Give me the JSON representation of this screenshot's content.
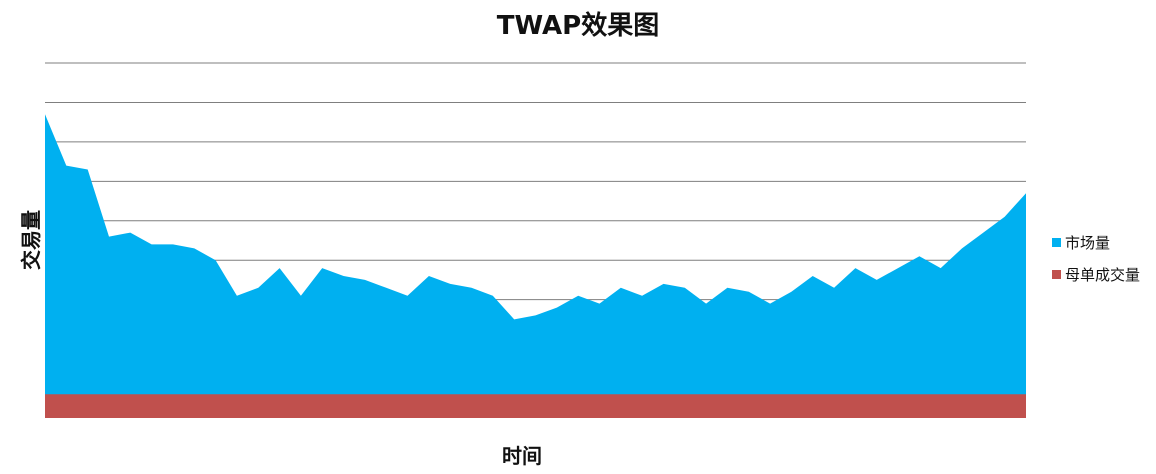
{
  "chart_data": {
    "type": "area",
    "title": "TWAP效果图",
    "xlabel": "时间",
    "ylabel": "交易量",
    "ylim": [
      0,
      9
    ],
    "grid": true,
    "y_ticks_shown": false,
    "x_ticks_shown": false,
    "legend": "right",
    "x": [
      0,
      1,
      2,
      3,
      4,
      5,
      6,
      7,
      8,
      9,
      10,
      11,
      12,
      13,
      14,
      15,
      16,
      17,
      18,
      19,
      20,
      21,
      22,
      23,
      24,
      25,
      26,
      27,
      28,
      29,
      30,
      31,
      32,
      33,
      34,
      35,
      36,
      37,
      38,
      39,
      40,
      41,
      42,
      43,
      44,
      45,
      46
    ],
    "series": [
      {
        "name": "市场量",
        "color": "#00b0f0",
        "values": [
          7.7,
          6.4,
          6.3,
          4.6,
          4.7,
          4.4,
          4.4,
          4.3,
          4.0,
          3.1,
          3.3,
          3.8,
          3.1,
          3.8,
          3.6,
          3.5,
          3.3,
          3.1,
          3.6,
          3.4,
          3.3,
          3.1,
          2.5,
          2.6,
          2.8,
          3.1,
          2.9,
          3.3,
          3.1,
          3.4,
          3.3,
          2.9,
          3.3,
          3.2,
          2.9,
          3.2,
          3.6,
          3.3,
          3.8,
          3.5,
          3.8,
          4.1,
          3.8,
          4.3,
          4.7,
          5.1,
          5.7
        ]
      },
      {
        "name": "母单成交量",
        "color": "#c0504d",
        "values": [
          0.6,
          0.6,
          0.6,
          0.6,
          0.6,
          0.6,
          0.6,
          0.6,
          0.6,
          0.6,
          0.6,
          0.6,
          0.6,
          0.6,
          0.6,
          0.6,
          0.6,
          0.6,
          0.6,
          0.6,
          0.6,
          0.6,
          0.6,
          0.6,
          0.6,
          0.6,
          0.6,
          0.6,
          0.6,
          0.6,
          0.6,
          0.6,
          0.6,
          0.6,
          0.6,
          0.6,
          0.6,
          0.6,
          0.6,
          0.6,
          0.6,
          0.6,
          0.6,
          0.6,
          0.6,
          0.6,
          0.6
        ]
      }
    ]
  }
}
